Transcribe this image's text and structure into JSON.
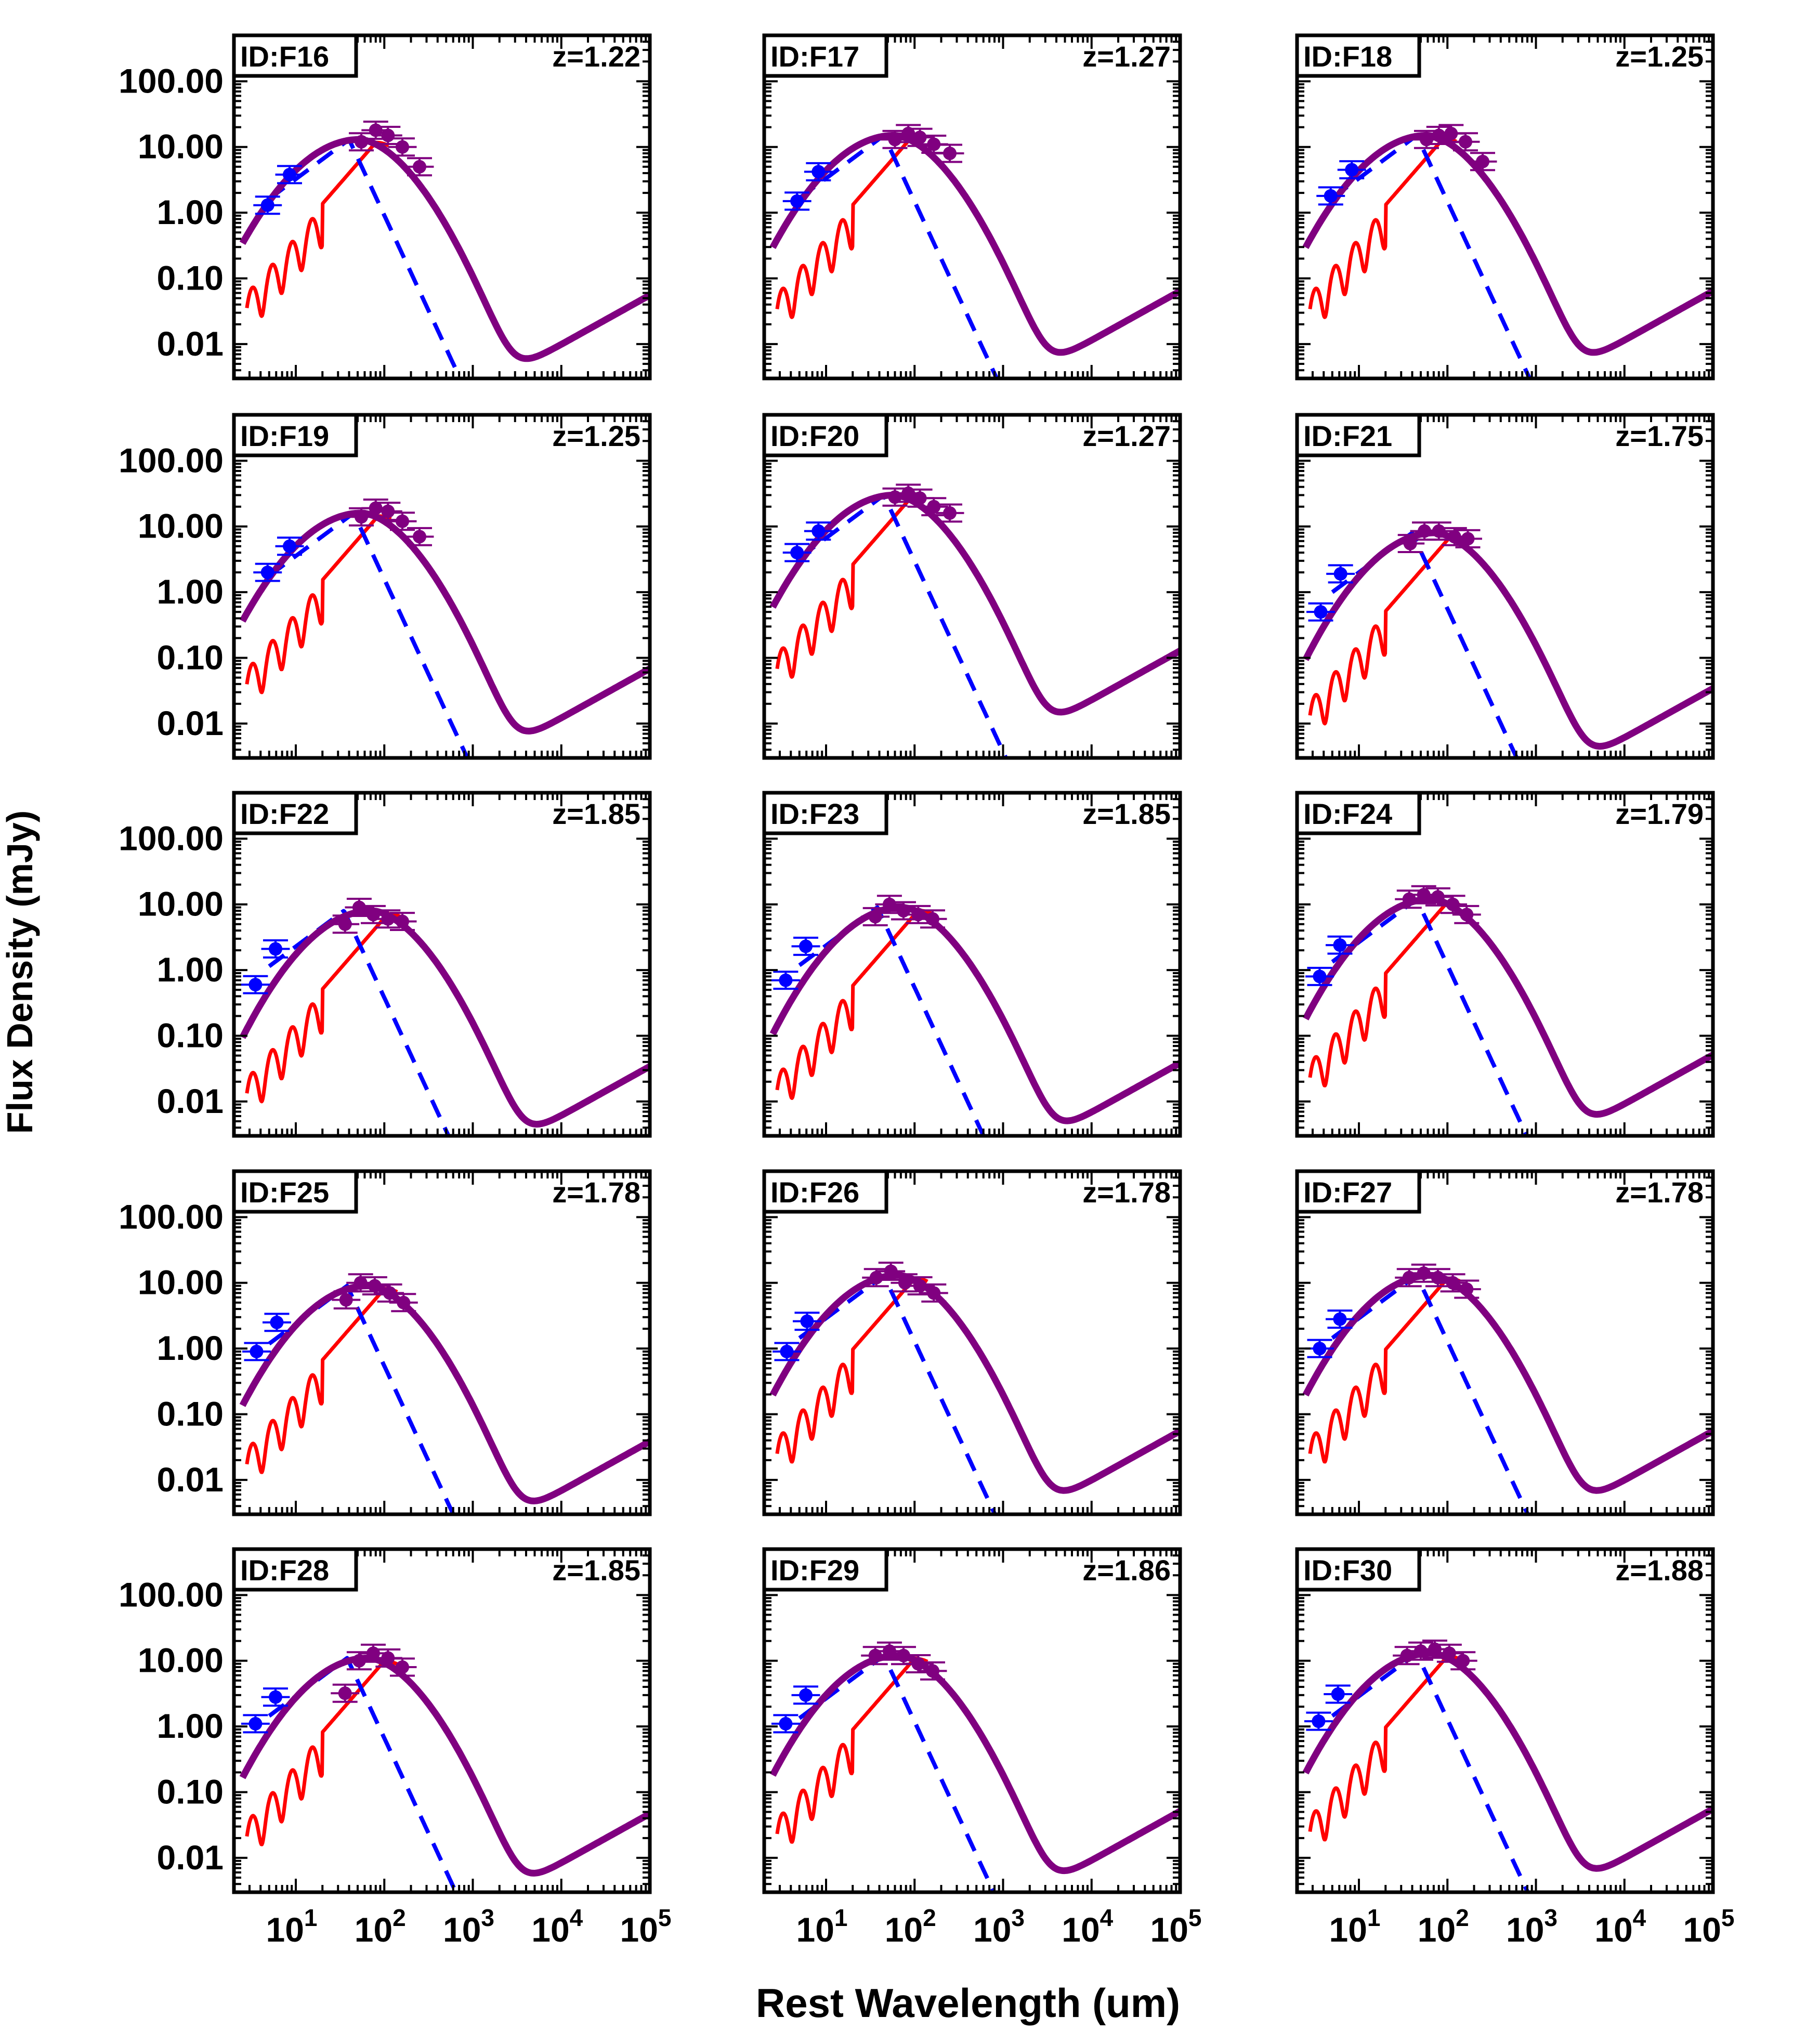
{
  "figure": {
    "xlabel": "Rest Wavelength (um)",
    "ylabel": "Flux Density (mJy)",
    "y_tick_labels": [
      "100.00",
      "10.00",
      "1.00",
      "0.10",
      "0.01"
    ],
    "x_tick_labels": [
      {
        "base": "10",
        "exp": "1"
      },
      {
        "base": "10",
        "exp": "2"
      },
      {
        "base": "10",
        "exp": "3"
      },
      {
        "base": "10",
        "exp": "4"
      },
      {
        "base": "10",
        "exp": "5"
      }
    ]
  },
  "colors": {
    "total_model": "#800080",
    "agn_torus": "#0000ff",
    "starburst": "#ff0000",
    "short_wavelength_points": "#0000ff",
    "long_wavelength_points": "#800080",
    "axes": "#000000"
  },
  "chart_data": [
    {
      "type": "line",
      "id": "ID:F16",
      "z": "z=1.22",
      "peak_mjy": 13,
      "sb_peak_um": 80,
      "torus_peak_um": 40,
      "blue_pts": [
        [
          4.8,
          1.3
        ],
        [
          8.5,
          3.8
        ]
      ],
      "purple_pts": [
        [
          55,
          12
        ],
        [
          80,
          18
        ],
        [
          110,
          15
        ],
        [
          160,
          10
        ],
        [
          250,
          5
        ]
      ],
      "x_scale": "log",
      "y_scale": "log",
      "xlim": [
        2,
        100000
      ],
      "ylim": [
        0.003,
        500
      ]
    },
    {
      "type": "line",
      "id": "ID:F17",
      "z": "z=1.27",
      "peak_mjy": 15,
      "sb_peak_um": 90,
      "torus_peak_um": 45,
      "blue_pts": [
        [
          4.7,
          1.5
        ],
        [
          8.2,
          4.2
        ]
      ],
      "purple_pts": [
        [
          60,
          13
        ],
        [
          85,
          16
        ],
        [
          115,
          14
        ],
        [
          165,
          11
        ],
        [
          250,
          8
        ]
      ],
      "x_scale": "log",
      "y_scale": "log",
      "xlim": [
        2,
        100000
      ],
      "ylim": [
        0.003,
        500
      ]
    },
    {
      "type": "line",
      "id": "ID:F18",
      "z": "z=1.25",
      "peak_mjy": 15,
      "sb_peak_um": 90,
      "torus_peak_um": 45,
      "blue_pts": [
        [
          4.8,
          1.8
        ],
        [
          8.3,
          4.5
        ]
      ],
      "purple_pts": [
        [
          58,
          13
        ],
        [
          80,
          15
        ],
        [
          110,
          16
        ],
        [
          160,
          12
        ],
        [
          250,
          6
        ]
      ],
      "x_scale": "log",
      "y_scale": "log",
      "xlim": [
        2,
        100000
      ],
      "ylim": [
        0.003,
        500
      ]
    },
    {
      "type": "line",
      "id": "ID:F19",
      "z": "z=1.25",
      "peak_mjy": 16,
      "sb_peak_um": 85,
      "torus_peak_um": 45,
      "blue_pts": [
        [
          4.8,
          2.0
        ],
        [
          8.5,
          5.0
        ]
      ],
      "purple_pts": [
        [
          55,
          14
        ],
        [
          80,
          19
        ],
        [
          110,
          17
        ],
        [
          160,
          12
        ],
        [
          250,
          7
        ]
      ],
      "x_scale": "log",
      "y_scale": "log",
      "xlim": [
        2,
        100000
      ],
      "ylim": [
        0.003,
        500
      ]
    },
    {
      "type": "line",
      "id": "ID:F20",
      "z": "z=1.27",
      "peak_mjy": 30,
      "sb_peak_um": 90,
      "torus_peak_um": 45,
      "blue_pts": [
        [
          4.7,
          4.0
        ],
        [
          8.2,
          8.5
        ]
      ],
      "purple_pts": [
        [
          60,
          28
        ],
        [
          85,
          32
        ],
        [
          115,
          27
        ],
        [
          165,
          20
        ],
        [
          250,
          16
        ]
      ],
      "x_scale": "log",
      "y_scale": "log",
      "xlim": [
        2,
        100000
      ],
      "ylim": [
        0.003,
        500
      ]
    },
    {
      "type": "line",
      "id": "ID:F21",
      "z": "z=1.75",
      "peak_mjy": 8,
      "sb_peak_um": 110,
      "torus_peak_um": 40,
      "blue_pts": [
        [
          3.7,
          0.5
        ],
        [
          6.2,
          1.9
        ]
      ],
      "purple_pts": [
        [
          38,
          5.5
        ],
        [
          55,
          8.5
        ],
        [
          80,
          8.5
        ],
        [
          120,
          7.0
        ],
        [
          170,
          6.5
        ]
      ],
      "x_scale": "log",
      "y_scale": "log",
      "xlim": [
        2,
        100000
      ],
      "ylim": [
        0.003,
        500
      ]
    },
    {
      "type": "line",
      "id": "ID:F22",
      "z": "z=1.85",
      "peak_mjy": 8,
      "sb_peak_um": 110,
      "torus_peak_um": 35,
      "blue_pts": [
        [
          3.5,
          0.6
        ],
        [
          5.9,
          2.1
        ]
      ],
      "purple_pts": [
        [
          36,
          5.0
        ],
        [
          52,
          9.0
        ],
        [
          75,
          7.0
        ],
        [
          110,
          6.0
        ],
        [
          160,
          5.5
        ]
      ],
      "x_scale": "log",
      "y_scale": "log",
      "xlim": [
        2,
        100000
      ],
      "ylim": [
        0.003,
        500
      ]
    },
    {
      "type": "line",
      "id": "ID:F23",
      "z": "z=1.85",
      "peak_mjy": 9,
      "sb_peak_um": 110,
      "torus_peak_um": 38,
      "blue_pts": [
        [
          3.5,
          0.7
        ],
        [
          5.9,
          2.3
        ]
      ],
      "purple_pts": [
        [
          36,
          6.5
        ],
        [
          52,
          10.0
        ],
        [
          75,
          8.0
        ],
        [
          110,
          7.0
        ],
        [
          160,
          6.0
        ]
      ],
      "x_scale": "log",
      "y_scale": "log",
      "xlim": [
        2,
        100000
      ],
      "ylim": [
        0.003,
        500
      ]
    },
    {
      "type": "line",
      "id": "ID:F24",
      "z": "z=1.79",
      "peak_mjy": 12,
      "sb_peak_um": 100,
      "torus_peak_um": 45,
      "blue_pts": [
        [
          3.6,
          0.8
        ],
        [
          6.1,
          2.4
        ]
      ],
      "purple_pts": [
        [
          37,
          12
        ],
        [
          54,
          14
        ],
        [
          78,
          13
        ],
        [
          115,
          10
        ],
        [
          165,
          7
        ]
      ],
      "x_scale": "log",
      "y_scale": "log",
      "xlim": [
        2,
        100000
      ],
      "ylim": [
        0.003,
        500
      ]
    },
    {
      "type": "line",
      "id": "ID:F25",
      "z": "z=1.78",
      "peak_mjy": 9,
      "sb_peak_um": 100,
      "torus_peak_um": 38,
      "blue_pts": [
        [
          3.6,
          0.9
        ],
        [
          6.1,
          2.5
        ]
      ],
      "purple_pts": [
        [
          37,
          5.5
        ],
        [
          54,
          10.0
        ],
        [
          78,
          9.0
        ],
        [
          115,
          7.0
        ],
        [
          165,
          5.0
        ]
      ],
      "x_scale": "log",
      "y_scale": "log",
      "xlim": [
        2,
        100000
      ],
      "ylim": [
        0.003,
        500
      ]
    },
    {
      "type": "line",
      "id": "ID:F26",
      "z": "z=1.78",
      "peak_mjy": 13,
      "sb_peak_um": 100,
      "torus_peak_um": 45,
      "blue_pts": [
        [
          3.6,
          0.9
        ],
        [
          6.1,
          2.6
        ]
      ],
      "purple_pts": [
        [
          37,
          12
        ],
        [
          54,
          15
        ],
        [
          78,
          10
        ],
        [
          115,
          9
        ],
        [
          165,
          7
        ]
      ],
      "x_scale": "log",
      "y_scale": "log",
      "xlim": [
        2,
        100000
      ],
      "ylim": [
        0.003,
        500
      ]
    },
    {
      "type": "line",
      "id": "ID:F27",
      "z": "z=1.78",
      "peak_mjy": 13,
      "sb_peak_um": 100,
      "torus_peak_um": 45,
      "blue_pts": [
        [
          3.6,
          1.0
        ],
        [
          6.1,
          2.8
        ]
      ],
      "purple_pts": [
        [
          37,
          12
        ],
        [
          54,
          14
        ],
        [
          78,
          12
        ],
        [
          115,
          10
        ],
        [
          165,
          8
        ]
      ],
      "x_scale": "log",
      "y_scale": "log",
      "xlim": [
        2,
        100000
      ],
      "ylim": [
        0.003,
        500
      ]
    },
    {
      "type": "line",
      "id": "ID:F28",
      "z": "z=1.85",
      "peak_mjy": 11,
      "sb_peak_um": 100,
      "torus_peak_um": 38,
      "blue_pts": [
        [
          3.5,
          1.1
        ],
        [
          5.9,
          2.8
        ]
      ],
      "purple_pts": [
        [
          36,
          3.2
        ],
        [
          52,
          10
        ],
        [
          75,
          13
        ],
        [
          110,
          11
        ],
        [
          160,
          8
        ]
      ],
      "x_scale": "log",
      "y_scale": "log",
      "xlim": [
        2,
        100000
      ],
      "ylim": [
        0.003,
        500
      ]
    },
    {
      "type": "line",
      "id": "ID:F29",
      "z": "z=1.86",
      "peak_mjy": 12,
      "sb_peak_um": 100,
      "torus_peak_um": 45,
      "blue_pts": [
        [
          3.5,
          1.1
        ],
        [
          5.9,
          3.0
        ]
      ],
      "purple_pts": [
        [
          36,
          12
        ],
        [
          52,
          14
        ],
        [
          75,
          12
        ],
        [
          110,
          9
        ],
        [
          160,
          7
        ]
      ],
      "x_scale": "log",
      "y_scale": "log",
      "xlim": [
        2,
        100000
      ],
      "ylim": [
        0.003,
        500
      ]
    },
    {
      "type": "line",
      "id": "ID:F30",
      "z": "z=1.88",
      "peak_mjy": 13,
      "sb_peak_um": 100,
      "torus_peak_um": 45,
      "blue_pts": [
        [
          3.5,
          1.2
        ],
        [
          5.8,
          3.1
        ]
      ],
      "purple_pts": [
        [
          35,
          12
        ],
        [
          50,
          14
        ],
        [
          72,
          15
        ],
        [
          105,
          13
        ],
        [
          150,
          10
        ]
      ],
      "x_scale": "log",
      "y_scale": "log",
      "xlim": [
        2,
        100000
      ],
      "ylim": [
        0.003,
        500
      ]
    }
  ]
}
